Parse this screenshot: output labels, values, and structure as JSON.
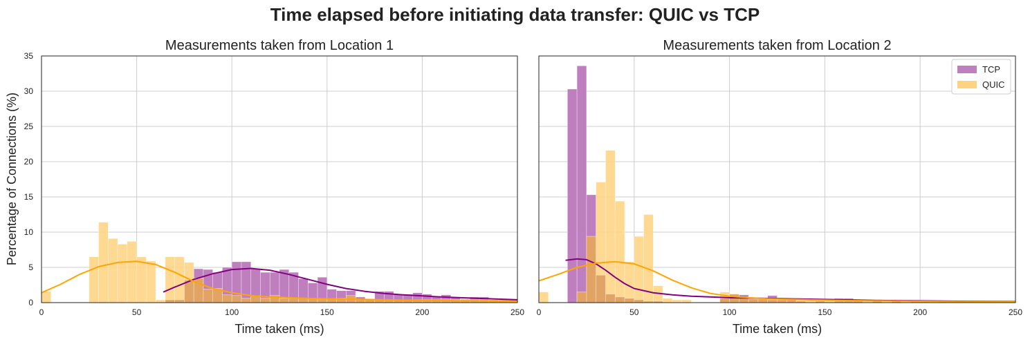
{
  "figure_title": "Time elapsed before initiating data transfer: QUIC vs TCP",
  "ylabel": "Percentage of Connections (%)",
  "colors": {
    "tcp_fill": "#bf7fbf",
    "tcp_line": "#800080",
    "quic_fill": "#ffd27f",
    "quic_line": "#ffa500",
    "overlap_fill": "#e0a060",
    "grid": "#cccccc",
    "axis": "#222222"
  },
  "chart_data": [
    {
      "type": "histogram",
      "title": "Measurements taken from Location 1",
      "xlabel": "Time taken (ms)",
      "xlim": [
        0,
        250
      ],
      "ylim": [
        0,
        35
      ],
      "xticks": [
        0,
        50,
        100,
        150,
        200,
        250
      ],
      "yticks": [
        0,
        5,
        10,
        15,
        20,
        25,
        30,
        35
      ],
      "bin_width": 5,
      "grid": true,
      "series": [
        {
          "name": "TCP",
          "bins": [
            {
              "x": 65,
              "y": 0.4
            },
            {
              "x": 70,
              "y": 0.4
            },
            {
              "x": 75,
              "y": 3.2
            },
            {
              "x": 80,
              "y": 4.8
            },
            {
              "x": 85,
              "y": 4.7
            },
            {
              "x": 90,
              "y": 4.3
            },
            {
              "x": 95,
              "y": 5.0
            },
            {
              "x": 100,
              "y": 5.8
            },
            {
              "x": 105,
              "y": 5.8
            },
            {
              "x": 110,
              "y": 4.8
            },
            {
              "x": 115,
              "y": 4.3
            },
            {
              "x": 120,
              "y": 4.3
            },
            {
              "x": 125,
              "y": 4.7
            },
            {
              "x": 130,
              "y": 4.3
            },
            {
              "x": 135,
              "y": 3.4
            },
            {
              "x": 140,
              "y": 2.8
            },
            {
              "x": 145,
              "y": 3.6
            },
            {
              "x": 150,
              "y": 1.9
            },
            {
              "x": 155,
              "y": 1.7
            },
            {
              "x": 160,
              "y": 1.7
            },
            {
              "x": 165,
              "y": 0.8
            },
            {
              "x": 170,
              "y": 0.5
            },
            {
              "x": 175,
              "y": 1.6
            },
            {
              "x": 180,
              "y": 1.6
            },
            {
              "x": 185,
              "y": 1.2
            },
            {
              "x": 190,
              "y": 1.2
            },
            {
              "x": 195,
              "y": 1.4
            },
            {
              "x": 200,
              "y": 1.2
            },
            {
              "x": 205,
              "y": 0.8
            },
            {
              "x": 210,
              "y": 1.1
            },
            {
              "x": 215,
              "y": 0.8
            },
            {
              "x": 220,
              "y": 0.5
            },
            {
              "x": 225,
              "y": 0.8
            },
            {
              "x": 230,
              "y": 0.8
            },
            {
              "x": 235,
              "y": 0.4
            },
            {
              "x": 240,
              "y": 0.4
            },
            {
              "x": 245,
              "y": 0.4
            }
          ],
          "kde": [
            [
              64,
              1.5
            ],
            [
              70,
              2.2
            ],
            [
              80,
              3.3
            ],
            [
              90,
              4.1
            ],
            [
              100,
              4.7
            ],
            [
              110,
              4.85
            ],
            [
              120,
              4.6
            ],
            [
              130,
              4.0
            ],
            [
              140,
              3.3
            ],
            [
              150,
              2.6
            ],
            [
              160,
              2.0
            ],
            [
              170,
              1.6
            ],
            [
              180,
              1.3
            ],
            [
              190,
              1.1
            ],
            [
              200,
              0.95
            ],
            [
              210,
              0.8
            ],
            [
              220,
              0.7
            ],
            [
              230,
              0.6
            ],
            [
              240,
              0.5
            ],
            [
              250,
              0.4
            ]
          ]
        },
        {
          "name": "QUIC",
          "bins": [
            {
              "x": 0,
              "y": 1.6
            },
            {
              "x": 25,
              "y": 6.5
            },
            {
              "x": 30,
              "y": 11.4
            },
            {
              "x": 35,
              "y": 9.1
            },
            {
              "x": 40,
              "y": 8.3
            },
            {
              "x": 45,
              "y": 8.7
            },
            {
              "x": 50,
              "y": 6.5
            },
            {
              "x": 55,
              "y": 5.9
            },
            {
              "x": 60,
              "y": 0.4
            },
            {
              "x": 65,
              "y": 6.5
            },
            {
              "x": 70,
              "y": 6.5
            },
            {
              "x": 75,
              "y": 5.7
            },
            {
              "x": 80,
              "y": 3.5
            },
            {
              "x": 85,
              "y": 1.9
            },
            {
              "x": 90,
              "y": 2.0
            },
            {
              "x": 95,
              "y": 1.1
            },
            {
              "x": 100,
              "y": 1.0
            },
            {
              "x": 105,
              "y": 0.6
            },
            {
              "x": 110,
              "y": 1.0
            },
            {
              "x": 115,
              "y": 0.6
            },
            {
              "x": 120,
              "y": 1.0
            },
            {
              "x": 125,
              "y": 0.6
            },
            {
              "x": 130,
              "y": 0.6
            },
            {
              "x": 135,
              "y": 0.6
            },
            {
              "x": 140,
              "y": 0.6
            },
            {
              "x": 145,
              "y": 0.5
            },
            {
              "x": 150,
              "y": 0.6
            },
            {
              "x": 155,
              "y": 0.6
            },
            {
              "x": 160,
              "y": 1.0
            },
            {
              "x": 165,
              "y": 0.5
            },
            {
              "x": 170,
              "y": 0.5
            },
            {
              "x": 175,
              "y": 0.4
            },
            {
              "x": 180,
              "y": 0.4
            },
            {
              "x": 185,
              "y": 0.4
            },
            {
              "x": 190,
              "y": 0.4
            },
            {
              "x": 195,
              "y": 0.4
            },
            {
              "x": 200,
              "y": 0.4
            },
            {
              "x": 205,
              "y": 0.4
            },
            {
              "x": 210,
              "y": 0.4
            },
            {
              "x": 215,
              "y": 0.4
            },
            {
              "x": 220,
              "y": 0.4
            },
            {
              "x": 225,
              "y": 0.4
            },
            {
              "x": 230,
              "y": 0.4
            },
            {
              "x": 235,
              "y": 0.4
            },
            {
              "x": 240,
              "y": 0.4
            },
            {
              "x": 245,
              "y": 0.4
            }
          ],
          "kde": [
            [
              0,
              1.4
            ],
            [
              10,
              2.6
            ],
            [
              20,
              4.0
            ],
            [
              30,
              5.1
            ],
            [
              40,
              5.7
            ],
            [
              50,
              5.85
            ],
            [
              60,
              5.4
            ],
            [
              70,
              4.3
            ],
            [
              80,
              3.0
            ],
            [
              90,
              2.0
            ],
            [
              100,
              1.4
            ],
            [
              110,
              1.0
            ],
            [
              120,
              0.8
            ],
            [
              130,
              0.7
            ],
            [
              140,
              0.6
            ],
            [
              150,
              0.55
            ],
            [
              160,
              0.5
            ],
            [
              170,
              0.45
            ],
            [
              180,
              0.4
            ],
            [
              190,
              0.35
            ],
            [
              200,
              0.3
            ],
            [
              210,
              0.3
            ],
            [
              220,
              0.25
            ],
            [
              230,
              0.25
            ],
            [
              240,
              0.2
            ],
            [
              250,
              0.2
            ]
          ]
        }
      ]
    },
    {
      "type": "histogram",
      "title": "Measurements taken from Location 2",
      "xlabel": "Time taken (ms)",
      "xlim": [
        0,
        250
      ],
      "ylim": [
        0,
        35
      ],
      "xticks": [
        0,
        50,
        100,
        150,
        200,
        250
      ],
      "yticks": [
        0,
        5,
        10,
        15,
        20,
        25,
        30,
        35
      ],
      "bin_width": 5,
      "grid": true,
      "legend": {
        "position": "top-right",
        "entries": [
          "TCP",
          "QUIC"
        ]
      },
      "series": [
        {
          "name": "TCP",
          "bins": [
            {
              "x": 15,
              "y": 30.3
            },
            {
              "x": 20,
              "y": 33.6
            },
            {
              "x": 25,
              "y": 15.3
            },
            {
              "x": 30,
              "y": 3.9
            },
            {
              "x": 35,
              "y": 1.2
            },
            {
              "x": 40,
              "y": 0.8
            },
            {
              "x": 45,
              "y": 0.6
            },
            {
              "x": 50,
              "y": 0.4
            },
            {
              "x": 55,
              "y": 0.2
            },
            {
              "x": 60,
              "y": 0.2
            },
            {
              "x": 95,
              "y": 0.6
            },
            {
              "x": 100,
              "y": 1.2
            },
            {
              "x": 105,
              "y": 1.1
            },
            {
              "x": 110,
              "y": 0.5
            },
            {
              "x": 115,
              "y": 0.5
            },
            {
              "x": 120,
              "y": 1.0
            },
            {
              "x": 125,
              "y": 0.5
            },
            {
              "x": 130,
              "y": 0.4
            },
            {
              "x": 135,
              "y": 0.2
            },
            {
              "x": 145,
              "y": 0.2
            },
            {
              "x": 155,
              "y": 0.6
            },
            {
              "x": 160,
              "y": 0.6
            },
            {
              "x": 165,
              "y": 0.2
            },
            {
              "x": 175,
              "y": 0.2
            },
            {
              "x": 185,
              "y": 0.2
            },
            {
              "x": 195,
              "y": 0.2
            },
            {
              "x": 200,
              "y": 0.2
            },
            {
              "x": 210,
              "y": 0.2
            },
            {
              "x": 220,
              "y": 0.2
            },
            {
              "x": 230,
              "y": 0.2
            },
            {
              "x": 240,
              "y": 0.2
            }
          ],
          "kde": [
            [
              14,
              6.0
            ],
            [
              20,
              6.2
            ],
            [
              25,
              6.1
            ],
            [
              30,
              5.5
            ],
            [
              35,
              4.6
            ],
            [
              40,
              3.6
            ],
            [
              45,
              2.7
            ],
            [
              50,
              2.0
            ],
            [
              60,
              1.4
            ],
            [
              70,
              1.1
            ],
            [
              80,
              0.9
            ],
            [
              90,
              0.8
            ],
            [
              100,
              0.7
            ],
            [
              120,
              0.6
            ],
            [
              140,
              0.5
            ],
            [
              160,
              0.4
            ],
            [
              180,
              0.3
            ],
            [
              200,
              0.25
            ],
            [
              220,
              0.2
            ],
            [
              250,
              0.15
            ]
          ]
        },
        {
          "name": "QUIC",
          "bins": [
            {
              "x": 0,
              "y": 1.5
            },
            {
              "x": 20,
              "y": 1.5
            },
            {
              "x": 25,
              "y": 9.4
            },
            {
              "x": 30,
              "y": 17.1
            },
            {
              "x": 35,
              "y": 21.6
            },
            {
              "x": 40,
              "y": 14.4
            },
            {
              "x": 45,
              "y": 5.8
            },
            {
              "x": 50,
              "y": 9.4
            },
            {
              "x": 55,
              "y": 12.5
            },
            {
              "x": 60,
              "y": 2.4
            },
            {
              "x": 65,
              "y": 0.6
            },
            {
              "x": 70,
              "y": 0.4
            },
            {
              "x": 75,
              "y": 0.4
            },
            {
              "x": 95,
              "y": 1.5
            },
            {
              "x": 100,
              "y": 1.2
            },
            {
              "x": 105,
              "y": 0.8
            },
            {
              "x": 110,
              "y": 0.5
            },
            {
              "x": 115,
              "y": 0.5
            },
            {
              "x": 120,
              "y": 0.4
            },
            {
              "x": 125,
              "y": 0.4
            },
            {
              "x": 130,
              "y": 0.4
            },
            {
              "x": 135,
              "y": 0.3
            },
            {
              "x": 140,
              "y": 0.3
            },
            {
              "x": 145,
              "y": 0.3
            },
            {
              "x": 150,
              "y": 0.3
            },
            {
              "x": 155,
              "y": 0.2
            },
            {
              "x": 160,
              "y": 0.2
            },
            {
              "x": 165,
              "y": 0.2
            },
            {
              "x": 170,
              "y": 0.2
            },
            {
              "x": 175,
              "y": 0.2
            },
            {
              "x": 180,
              "y": 0.2
            },
            {
              "x": 185,
              "y": 0.2
            },
            {
              "x": 190,
              "y": 0.2
            },
            {
              "x": 195,
              "y": 0.2
            },
            {
              "x": 200,
              "y": 0.2
            },
            {
              "x": 205,
              "y": 0.2
            },
            {
              "x": 210,
              "y": 0.2
            },
            {
              "x": 215,
              "y": 0.2
            },
            {
              "x": 220,
              "y": 0.2
            },
            {
              "x": 225,
              "y": 0.2
            },
            {
              "x": 230,
              "y": 0.2
            },
            {
              "x": 235,
              "y": 0.2
            },
            {
              "x": 240,
              "y": 0.2
            },
            {
              "x": 245,
              "y": 0.2
            }
          ],
          "kde": [
            [
              0,
              3.1
            ],
            [
              10,
              4.0
            ],
            [
              20,
              5.0
            ],
            [
              30,
              5.6
            ],
            [
              40,
              5.8
            ],
            [
              50,
              5.5
            ],
            [
              60,
              4.5
            ],
            [
              70,
              3.2
            ],
            [
              80,
              2.1
            ],
            [
              90,
              1.3
            ],
            [
              100,
              0.9
            ],
            [
              110,
              0.7
            ],
            [
              120,
              0.55
            ],
            [
              140,
              0.4
            ],
            [
              160,
              0.3
            ],
            [
              180,
              0.25
            ],
            [
              200,
              0.2
            ],
            [
              220,
              0.15
            ],
            [
              250,
              0.1
            ]
          ]
        }
      ]
    }
  ]
}
